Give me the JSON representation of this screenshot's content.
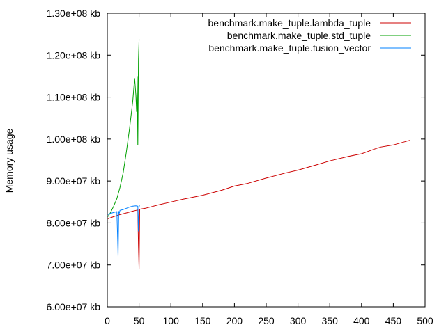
{
  "chart_data": {
    "type": "line",
    "title": "",
    "xlabel": "",
    "ylabel": "Memory usage",
    "xlim": [
      0,
      500
    ],
    "ylim": [
      60000000,
      130000000
    ],
    "x_ticks": [
      0,
      50,
      100,
      150,
      200,
      250,
      300,
      350,
      400,
      450,
      500
    ],
    "y_ticks": [
      60000000,
      70000000,
      80000000,
      90000000,
      100000000,
      110000000,
      120000000,
      130000000
    ],
    "x_tick_labels": [
      "0",
      "50",
      "100",
      "150",
      "200",
      "250",
      "300",
      "350",
      "400",
      "450",
      "500"
    ],
    "y_tick_labels": [
      "6.00e+07 kb",
      "7.00e+07 kb",
      "8.00e+07 kb",
      "9.00e+07 kb",
      "1.00e+08 kb",
      "1.10e+08 kb",
      "1.20e+08 kb",
      "1.30e+08 kb"
    ],
    "grid": false,
    "legend_position": "top-right",
    "series": [
      {
        "name": "benchmark.make_tuple.lambda_tuple",
        "color": "#cc0000",
        "x": [
          1,
          10,
          20,
          30,
          40,
          48,
          49,
          50,
          51,
          52,
          60,
          80,
          100,
          120,
          150,
          180,
          200,
          220,
          250,
          280,
          300,
          330,
          350,
          380,
          400,
          420,
          430,
          450,
          476
        ],
        "y": [
          81000000,
          81500000,
          82000000,
          82400000,
          82800000,
          83100000,
          74500000,
          69000000,
          83200000,
          83300000,
          83500000,
          84300000,
          85000000,
          85700000,
          86600000,
          87800000,
          88800000,
          89400000,
          90700000,
          91900000,
          92600000,
          93900000,
          94800000,
          95900000,
          96500000,
          97600000,
          98100000,
          98600000,
          99700000
        ]
      },
      {
        "name": "benchmark.make_tuple.std_tuple",
        "color": "#00a000",
        "x": [
          1,
          5,
          10,
          15,
          20,
          25,
          30,
          35,
          40,
          43,
          45,
          46,
          47,
          48,
          49,
          50
        ],
        "y": [
          81500000,
          82500000,
          84000000,
          85800000,
          88500000,
          92000000,
          97000000,
          102500000,
          109000000,
          114500000,
          110500000,
          106500000,
          115000000,
          98500000,
          119000000,
          123800000
        ]
      },
      {
        "name": "benchmark.make_tuple.fusion_vector",
        "color": "#0080ff",
        "x": [
          1,
          5,
          10,
          15,
          16,
          17,
          18,
          19,
          20,
          25,
          30,
          35,
          40,
          45,
          48,
          49,
          50,
          51
        ],
        "y": [
          82000000,
          82300000,
          82500000,
          82700000,
          77500000,
          72000000,
          82800000,
          82400000,
          83000000,
          83200000,
          83500000,
          83800000,
          84000000,
          84100000,
          84000000,
          78000000,
          84200000,
          84000000
        ]
      }
    ]
  }
}
